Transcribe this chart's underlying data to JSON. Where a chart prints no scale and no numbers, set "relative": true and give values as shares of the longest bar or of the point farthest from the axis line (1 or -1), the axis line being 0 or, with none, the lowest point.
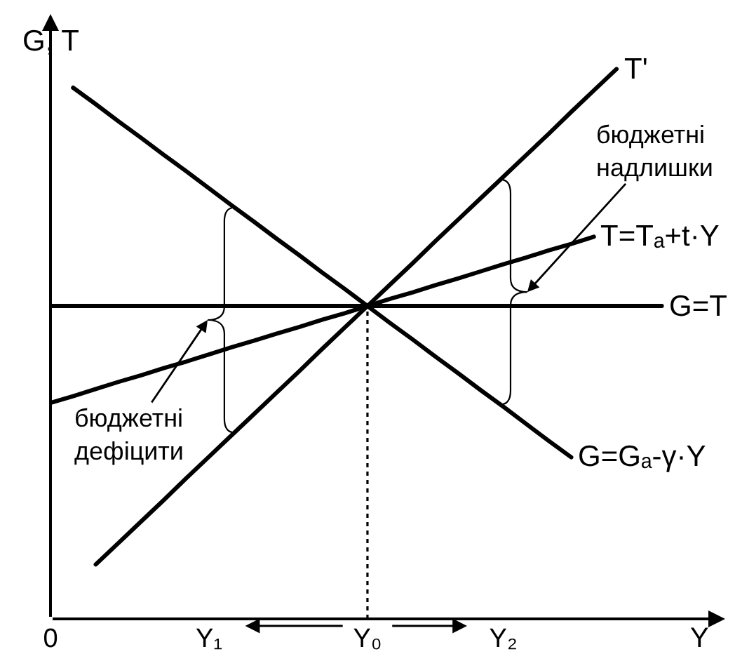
{
  "chart_data": {
    "type": "line",
    "relative": true,
    "xlabel": "Y",
    "ylabel": "G, T",
    "categories": [
      "0",
      null,
      null,
      null,
      null,
      null,
      null,
      "Y₁",
      null,
      null,
      null,
      null,
      null,
      null,
      "Y₀",
      null,
      null,
      null,
      null,
      null,
      "Y₂",
      null,
      null,
      null,
      null,
      null,
      null,
      null,
      null,
      null
    ],
    "tick_labels": "x",
    "series": [
      {
        "name": "T'",
        "color": "#000000",
        "values": [
          null,
          null,
          0.099,
          0.138,
          0.177,
          0.216,
          0.256,
          0.295,
          0.334,
          0.373,
          0.412,
          0.451,
          0.491,
          0.53,
          0.569,
          0.608,
          0.647,
          0.687,
          0.726,
          0.765,
          0.804,
          0.843,
          0.882,
          0.922,
          0.961,
          1,
          null,
          null,
          null,
          null
        ]
      },
      {
        "name": "T=Tₐ+t·Y",
        "color": "#000000",
        "values": [
          0.393,
          0.405,
          0.418,
          0.431,
          0.443,
          0.456,
          0.468,
          0.481,
          0.494,
          0.506,
          0.519,
          0.531,
          0.544,
          0.556,
          0.569,
          0.582,
          0.594,
          0.607,
          0.619,
          0.632,
          0.645,
          0.657,
          0.67,
          0.682,
          0.695,
          null,
          null,
          null,
          null,
          null
        ]
      },
      {
        "name": "G=T",
        "color": "#000000",
        "values": [
          0.569,
          0.569,
          0.569,
          0.569,
          0.569,
          0.569,
          0.569,
          0.569,
          0.569,
          0.569,
          0.569,
          0.569,
          0.569,
          0.569,
          0.569,
          0.569,
          0.569,
          0.569,
          0.569,
          0.569,
          0.569,
          0.569,
          0.569,
          0.569,
          0.569,
          0.569,
          0.569,
          0.569,
          null,
          null
        ]
      },
      {
        "name": "G=Gₐ-γ·Y",
        "color": "#000000",
        "values": [
          null,
          0.966,
          0.936,
          0.905,
          0.875,
          0.844,
          0.814,
          0.783,
          0.752,
          0.722,
          0.691,
          0.661,
          0.63,
          0.6,
          0.569,
          0.538,
          0.508,
          0.477,
          0.447,
          0.416,
          0.386,
          0.355,
          0.324,
          0.294,
          null,
          null,
          null,
          null,
          null,
          null
        ]
      }
    ],
    "ref_lines": [
      {
        "axis": "x",
        "value": "Y₀",
        "line_style": "dotted"
      }
    ],
    "annotations": [
      "бюджетні\nдефіцити",
      "бюджетні\nнадлишки"
    ]
  }
}
